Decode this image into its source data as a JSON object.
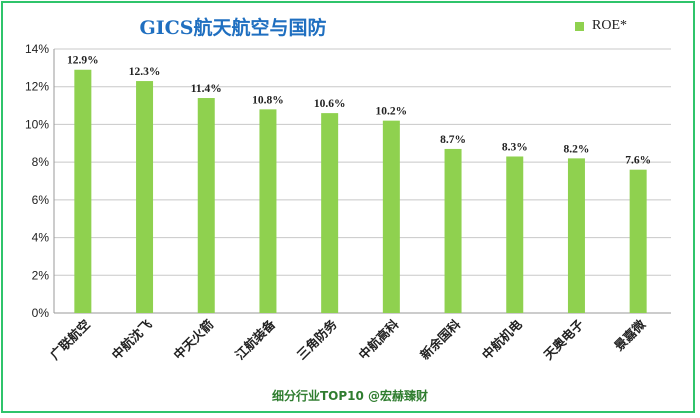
{
  "chart_data": {
    "type": "bar",
    "title": "GICS航天航空与国防",
    "categories": [
      "广联航空",
      "中航沈飞",
      "中天火箭",
      "江航装备",
      "三角防务",
      "中航高科",
      "新余国科",
      "中航机电",
      "天奥电子",
      "景嘉微"
    ],
    "series": [
      {
        "name": "ROE*",
        "values": [
          12.9,
          12.3,
          11.4,
          10.8,
          10.6,
          10.2,
          8.7,
          8.3,
          8.2,
          7.6
        ],
        "labels": [
          "12.9%",
          "12.3%",
          "11.4%",
          "10.8%",
          "10.6%",
          "10.2%",
          "8.7%",
          "8.3%",
          "8.2%",
          "7.6%"
        ]
      }
    ],
    "ylim": [
      0,
      14
    ],
    "yticks": [
      0,
      2,
      4,
      6,
      8,
      10,
      12,
      14
    ],
    "ytick_labels": [
      "0%",
      "2%",
      "4%",
      "6%",
      "8%",
      "10%",
      "12%",
      "14%"
    ],
    "grid": "horizontal",
    "legend_position": "top-right",
    "xlabel": "",
    "ylabel": "",
    "bar_color": "#8fd14f"
  },
  "footer": "细分行业TOP10 @宏赫臻财"
}
